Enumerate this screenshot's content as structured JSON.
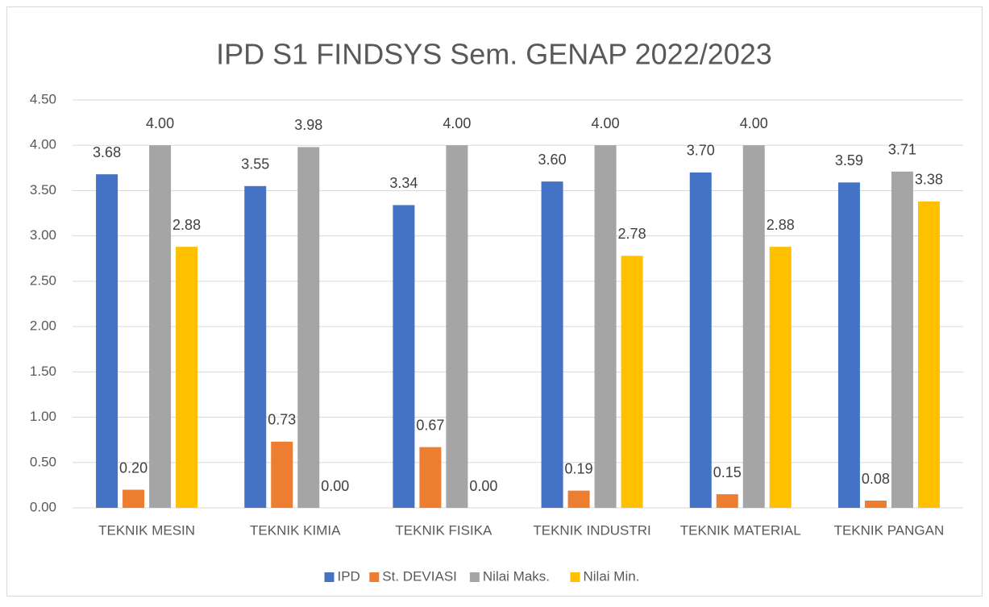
{
  "chart_data": {
    "type": "bar",
    "title": "IPD S1 FINDSYS Sem. GENAP 2022/2023",
    "categories": [
      "TEKNIK MESIN",
      "TEKNIK KIMIA",
      "TEKNIK FISIKA",
      "TEKNIK INDUSTRI",
      "TEKNIK MATERIAL",
      "TEKNIK PANGAN"
    ],
    "series": [
      {
        "name": "IPD",
        "color": "#4472c4",
        "values": [
          3.68,
          3.55,
          3.34,
          3.6,
          3.7,
          3.59
        ],
        "value_labels": [
          "3.68",
          "3.55",
          "3.34",
          "3.60",
          "3.70",
          "3.59"
        ]
      },
      {
        "name": "St. DEVIASI",
        "color": "#ed7d31",
        "values": [
          0.2,
          0.73,
          0.67,
          0.19,
          0.15,
          0.08
        ],
        "value_labels": [
          "0.20",
          "0.73",
          "0.67",
          "0.19",
          "0.15",
          "0.08"
        ]
      },
      {
        "name": "Nilai Maks.",
        "color": "#a5a5a5",
        "values": [
          4,
          3.98,
          4,
          4,
          4,
          3.71
        ],
        "value_labels": [
          "4.00",
          "3.98",
          "4.00",
          "4.00",
          "4.00",
          "3.71"
        ]
      },
      {
        "name": "Nilai Min.",
        "color": "#ffc000",
        "values": [
          2.88,
          0,
          0,
          2.78,
          2.88,
          3.38
        ],
        "value_labels": [
          "2.88",
          "0.00",
          "0.00",
          "2.78",
          "2.88",
          "3.38"
        ]
      }
    ],
    "ylim": [
      0,
      4.5
    ],
    "yticks": [
      {
        "value": 0,
        "label": "0.00"
      },
      {
        "value": 0.5,
        "label": "0.50"
      },
      {
        "value": 1,
        "label": "1.00"
      },
      {
        "value": 1.5,
        "label": "1.50"
      },
      {
        "value": 2,
        "label": "2.00"
      },
      {
        "value": 2.5,
        "label": "2.50"
      },
      {
        "value": 3,
        "label": "3.00"
      },
      {
        "value": 3.5,
        "label": "3.50"
      },
      {
        "value": 4,
        "label": "4.00"
      },
      {
        "value": 4.5,
        "label": "4.50"
      }
    ],
    "grid": true,
    "legend": "bottom"
  }
}
